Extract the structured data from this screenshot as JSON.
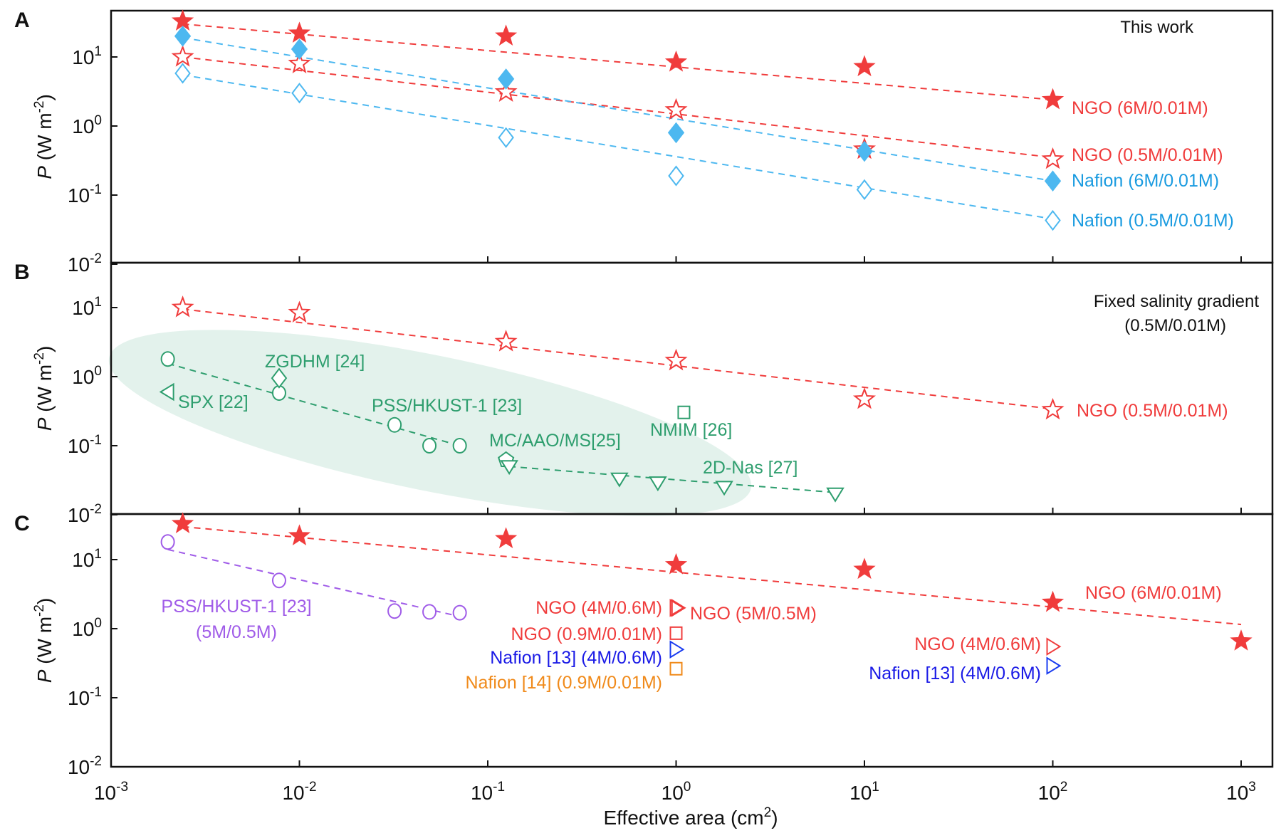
{
  "chart_data": {
    "type": "scatter",
    "xlabel": "Effective area (cm²)",
    "xlabel_base": "Effective area (cm",
    "xlabel_sup": "2",
    "xlabel_end": ")",
    "xscale": "log",
    "xlim": [
      0.001,
      1500
    ],
    "xticks": [
      {
        "value": 0.001,
        "base": "10",
        "exp": "-3"
      },
      {
        "value": 0.01,
        "base": "10",
        "exp": "-2"
      },
      {
        "value": 0.1,
        "base": "10",
        "exp": "-1"
      },
      {
        "value": 1,
        "base": "10",
        "exp": "0"
      },
      {
        "value": 10,
        "base": "10",
        "exp": "1"
      },
      {
        "value": 100,
        "base": "10",
        "exp": "2"
      },
      {
        "value": 1000,
        "base": "10",
        "exp": "3"
      }
    ],
    "panels": [
      {
        "id": "A",
        "label": "A",
        "ylabel": "P (W m⁻²)",
        "yscale": "log",
        "ylim": [
          0.01,
          50
        ],
        "yticks": [
          {
            "value": 10,
            "base": "10",
            "exp": "1"
          },
          {
            "value": 1,
            "base": "10",
            "exp": "0"
          },
          {
            "value": 0.1,
            "base": "10",
            "exp": "-1"
          },
          {
            "value": 0.01,
            "base": "10",
            "exp": "-2"
          }
        ],
        "annotations": [
          {
            "text": "This work",
            "position": "top-right",
            "color": "#000000"
          }
        ],
        "series": [
          {
            "name": "NGO (6M/0.01M)",
            "marker": "star-filled",
            "color": "#f03c3c",
            "label_color": "#f03c3c",
            "x": [
              0.0024,
              0.01,
              0.125,
              1,
              10,
              100
            ],
            "y": [
              33,
              22,
              20,
              8.4,
              7.2,
              2.4
            ],
            "fit": {
              "x": [
                0.0024,
                100
              ],
              "y": [
                30,
                2.4
              ]
            }
          },
          {
            "name": "NGO (0.5M/0.01M)",
            "marker": "star-open",
            "color": "#f03c3c",
            "label_color": "#f03c3c",
            "x": [
              0.0024,
              0.01,
              0.125,
              1,
              10,
              100
            ],
            "y": [
              10,
              8,
              3.1,
              1.7,
              0.46,
              0.33
            ],
            "fit": {
              "x": [
                0.0024,
                100
              ],
              "y": [
                10,
                0.35
              ]
            }
          },
          {
            "name": "Nafion (6M/0.01M)",
            "marker": "diamond-filled",
            "color": "#4db8f0",
            "label_color": "#1a9be0",
            "x": [
              0.0024,
              0.01,
              0.125,
              1,
              10,
              100
            ],
            "y": [
              20,
              13,
              4.8,
              0.8,
              0.43,
              0.16
            ],
            "fit": {
              "x": [
                0.0024,
                100
              ],
              "y": [
                19,
                0.16
              ]
            }
          },
          {
            "name": "Nafion (0.5M/0.01M)",
            "marker": "diamond-open",
            "color": "#4db8f0",
            "label_color": "#1a9be0",
            "x": [
              0.0024,
              0.01,
              0.125,
              1,
              10,
              100
            ],
            "y": [
              5.8,
              3,
              0.68,
              0.19,
              0.12,
              0.043
            ],
            "fit": {
              "x": [
                0.0024,
                100
              ],
              "y": [
                5.5,
                0.045
              ]
            }
          }
        ]
      },
      {
        "id": "B",
        "label": "B",
        "ylabel": "P (W m⁻²)",
        "yscale": "log",
        "ylim": [
          0.01,
          50
        ],
        "yticks": [
          {
            "value": 10,
            "base": "10",
            "exp": "1"
          },
          {
            "value": 1,
            "base": "10",
            "exp": "0"
          },
          {
            "value": 0.1,
            "base": "10",
            "exp": "-1"
          },
          {
            "value": 0.01,
            "base": "10",
            "exp": "-2"
          }
        ],
        "annotations": [
          {
            "text": "Fixed salinity gradient",
            "position": "top-right",
            "color": "#000000"
          },
          {
            "text": "(0.5M/0.01M)",
            "position": "top-right",
            "color": "#000000"
          }
        ],
        "shaded_region": {
          "color": "#e3f2ec",
          "description": "literature membranes ellipse"
        },
        "series": [
          {
            "name": "NGO (0.5M/0.01M)",
            "marker": "star-open",
            "color": "#f03c3c",
            "label_color": "#f03c3c",
            "x": [
              0.0024,
              0.01,
              0.125,
              1,
              10,
              100
            ],
            "y": [
              10,
              8.4,
              3.2,
              1.7,
              0.47,
              0.33
            ],
            "fit": {
              "x": [
                0.0024,
                100
              ],
              "y": [
                9.5,
                0.34
              ]
            }
          },
          {
            "name": "PSS/HKUST-1 [23]",
            "marker": "circle-open",
            "color": "#2e9e6e",
            "label_color": "#2e9e6e",
            "x": [
              0.002,
              0.0078,
              0.032,
              0.049,
              0.071
            ],
            "y": [
              1.8,
              0.58,
              0.2,
              0.1,
              0.1
            ],
            "fit": {
              "x": [
                0.002,
                0.071
              ],
              "y": [
                1.55,
                0.1
              ]
            }
          },
          {
            "name": "ZGDHM [24]",
            "marker": "diamond-open",
            "color": "#2e9e6e",
            "label_color": "#2e9e6e",
            "x": [
              0.0078
            ],
            "y": [
              0.95
            ]
          },
          {
            "name": "SPX [22]",
            "marker": "triangle-left-open",
            "color": "#2e9e6e",
            "label_color": "#2e9e6e",
            "x": [
              0.002
            ],
            "y": [
              0.6
            ]
          },
          {
            "name": "MC/AAO/MS[25]",
            "marker": "pentagon-open",
            "color": "#2e9e6e",
            "label_color": "#2e9e6e",
            "x": [
              0.125
            ],
            "y": [
              0.062
            ]
          },
          {
            "name": "NMIM [26]",
            "marker": "square-open",
            "color": "#2e9e6e",
            "label_color": "#2e9e6e",
            "x": [
              1.1
            ],
            "y": [
              0.3
            ]
          },
          {
            "name": "2D-Nas [27]",
            "marker": "triangle-down-open",
            "color": "#2e9e6e",
            "label_color": "#2e9e6e",
            "x": [
              0.13,
              0.5,
              0.8,
              1.8,
              7
            ],
            "y": [
              0.05,
              0.033,
              0.029,
              0.025,
              0.02
            ],
            "fit": {
              "x": [
                0.13,
                7
              ],
              "y": [
                0.05,
                0.021
              ]
            }
          }
        ]
      },
      {
        "id": "C",
        "label": "C",
        "ylabel": "P (W m⁻²)",
        "yscale": "log",
        "ylim": [
          0.01,
          50
        ],
        "yticks": [
          {
            "value": 10,
            "base": "10",
            "exp": "1"
          },
          {
            "value": 1,
            "base": "10",
            "exp": "0"
          },
          {
            "value": 0.1,
            "base": "10",
            "exp": "-1"
          },
          {
            "value": 0.01,
            "base": "10",
            "exp": "-2"
          }
        ],
        "annotations": [],
        "series": [
          {
            "name": "NGO (6M/0.01M)",
            "marker": "star-filled",
            "color": "#f03c3c",
            "label_color": "#f03c3c",
            "x": [
              0.0024,
              0.01,
              0.125,
              1,
              10,
              100,
              1000
            ],
            "y": [
              33,
              22,
              20,
              8.4,
              7.2,
              2.4,
              0.66
            ],
            "fit": {
              "x": [
                0.0024,
                1000
              ],
              "y": [
                30,
                1.15
              ]
            }
          },
          {
            "name": "PSS/HKUST-1 [23] (5M/0.5M)",
            "label_line1": "PSS/HKUST-1 [23]",
            "label_line2": "(5M/0.5M)",
            "marker": "circle-open",
            "color": "#a05ce8",
            "label_color": "#a05ce8",
            "x": [
              0.002,
              0.0078,
              0.032,
              0.049,
              0.071
            ],
            "y": [
              18,
              5,
              1.8,
              1.75,
              1.7
            ],
            "fit": {
              "x": [
                0.002,
                0.071
              ],
              "y": [
                14,
                1.5
              ]
            }
          },
          {
            "name": "NGO (4M/0.6M)",
            "marker": "triangle-right-open",
            "color": "#f03c3c",
            "label_color": "#f03c3c",
            "x": [
              1
            ],
            "y": [
              2.0
            ]
          },
          {
            "name": "NGO (5M/0.5M)",
            "marker": "triangle-right-open",
            "color": "#f03c3c",
            "label_color": "#f03c3c",
            "x": [
              1.02
            ],
            "y": [
              2.0
            ]
          },
          {
            "name": "NGO (0.9M/0.01M)",
            "marker": "square-open",
            "color": "#f03c3c",
            "label_color": "#f03c3c",
            "x": [
              1
            ],
            "y": [
              0.85
            ]
          },
          {
            "name": "Nafion [13] (4M/0.6M)",
            "marker": "triangle-right-open",
            "color": "#1a3cf0",
            "label_color": "#1a1ae6",
            "x": [
              1,
              100
            ],
            "y": [
              0.5,
              0.29
            ]
          },
          {
            "name": "Nafion [14] (0.9M/0.01M)",
            "marker": "square-open",
            "color": "#f08a1a",
            "label_color": "#f08a1a",
            "x": [
              1
            ],
            "y": [
              0.26
            ]
          },
          {
            "name": "NGO (4M/0.6M) 100cm2",
            "display_label": "NGO (4M/0.6M)",
            "marker": "triangle-right-open",
            "color": "#f03c3c",
            "label_color": "#f03c3c",
            "x": [
              100
            ],
            "y": [
              0.55
            ]
          }
        ]
      }
    ],
    "grid": false,
    "legend": "inline-labels"
  }
}
